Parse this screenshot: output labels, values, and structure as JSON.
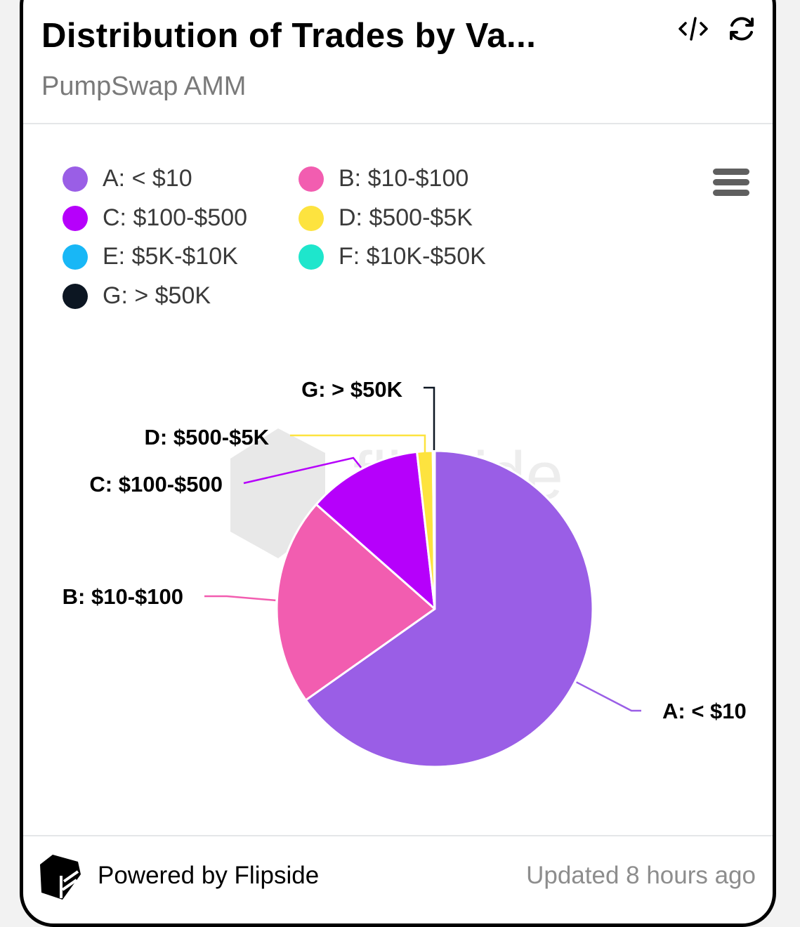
{
  "header": {
    "title": "Distribution of Trades by Va...",
    "subtitle": "PumpSwap AMM",
    "icons": [
      "code-icon",
      "refresh-icon"
    ]
  },
  "legend": {
    "items": [
      {
        "label": "A: < $10",
        "color": "#9a5ee6"
      },
      {
        "label": "B: $10-$100",
        "color": "#f25db0"
      },
      {
        "label": "C: $100-$500",
        "color": "#b600fb"
      },
      {
        "label": "D: $500-$5K",
        "color": "#fde33f"
      },
      {
        "label": "E: $5K-$10K",
        "color": "#18b7f6"
      },
      {
        "label": "F: $10K-$50K",
        "color": "#1ee6cc"
      },
      {
        "label": "G: > $50K",
        "color": "#0c1622"
      }
    ],
    "menu_icon": "hamburger-menu-icon"
  },
  "chart_data": {
    "type": "pie",
    "title": "Distribution of Trades by Va...",
    "subtitle": "PumpSwap AMM",
    "legend_position": "top-left",
    "categories": [
      "A: < $10",
      "B: $10-$100",
      "C: $100-$500",
      "D: $500-$5K",
      "E: $5K-$10K",
      "F: $10K-$50K",
      "G: > $50K"
    ],
    "values": [
      65.2,
      21.3,
      11.7,
      1.6,
      0.0,
      0.0,
      0.2
    ],
    "unit": "percent (estimated)",
    "colors": [
      "#9a5ee6",
      "#f25db0",
      "#b600fb",
      "#fde33f",
      "#18b7f6",
      "#1ee6cc",
      "#0c1622"
    ],
    "data_labels": [
      {
        "category": "A: < $10",
        "text": "A: < $10"
      },
      {
        "category": "B: $10-$100",
        "text": "B: $10-$100"
      },
      {
        "category": "C: $100-$500",
        "text": "C: $100-$500"
      },
      {
        "category": "D: $500-$5K",
        "text": "D: $500-$5K"
      },
      {
        "category": "G: > $50K",
        "text": "G: > $50K"
      }
    ],
    "watermark": "flipside"
  },
  "footer": {
    "powered_by": "Powered by Flipside",
    "updated": "Updated 8 hours ago",
    "logo_icon": "flipside-logo-icon"
  }
}
